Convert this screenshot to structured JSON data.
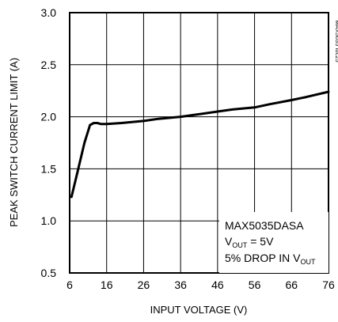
{
  "chart_data": {
    "type": "line",
    "xlabel": "INPUT VOLTAGE (V)",
    "ylabel": "PEAK SWITCH CURRENT LIMIT (A)",
    "xlim": [
      6,
      76
    ],
    "ylim": [
      0.5,
      3.0
    ],
    "x_ticks": [
      6,
      16,
      26,
      36,
      46,
      56,
      66,
      76
    ],
    "y_ticks": [
      0.5,
      1.0,
      1.5,
      2.0,
      2.5,
      3.0
    ],
    "y_tick_labels": [
      "0.5",
      "1.0",
      "1.5",
      "2.0",
      "2.5",
      "3.0"
    ],
    "grid": true,
    "series": [
      {
        "x": [
          6.5,
          8,
          10,
          11.5,
          12.5,
          13.5,
          14.5,
          16,
          20,
          26,
          30,
          36,
          40,
          46,
          50,
          56,
          60,
          66,
          70,
          76
        ],
        "y": [
          1.23,
          1.45,
          1.75,
          1.92,
          1.94,
          1.94,
          1.93,
          1.93,
          1.94,
          1.96,
          1.98,
          2.0,
          2.02,
          2.05,
          2.07,
          2.09,
          2.12,
          2.16,
          2.19,
          2.24
        ]
      }
    ],
    "annotations": {
      "line1": "MAX5035DASA",
      "line2_pre": "V",
      "line2_sub": "OUT",
      "line2_post": " = 5V",
      "line3_pre": "5% DROP IN V",
      "line3_sub": "OUT"
    },
    "side_id": "MAX5035 toc25"
  }
}
